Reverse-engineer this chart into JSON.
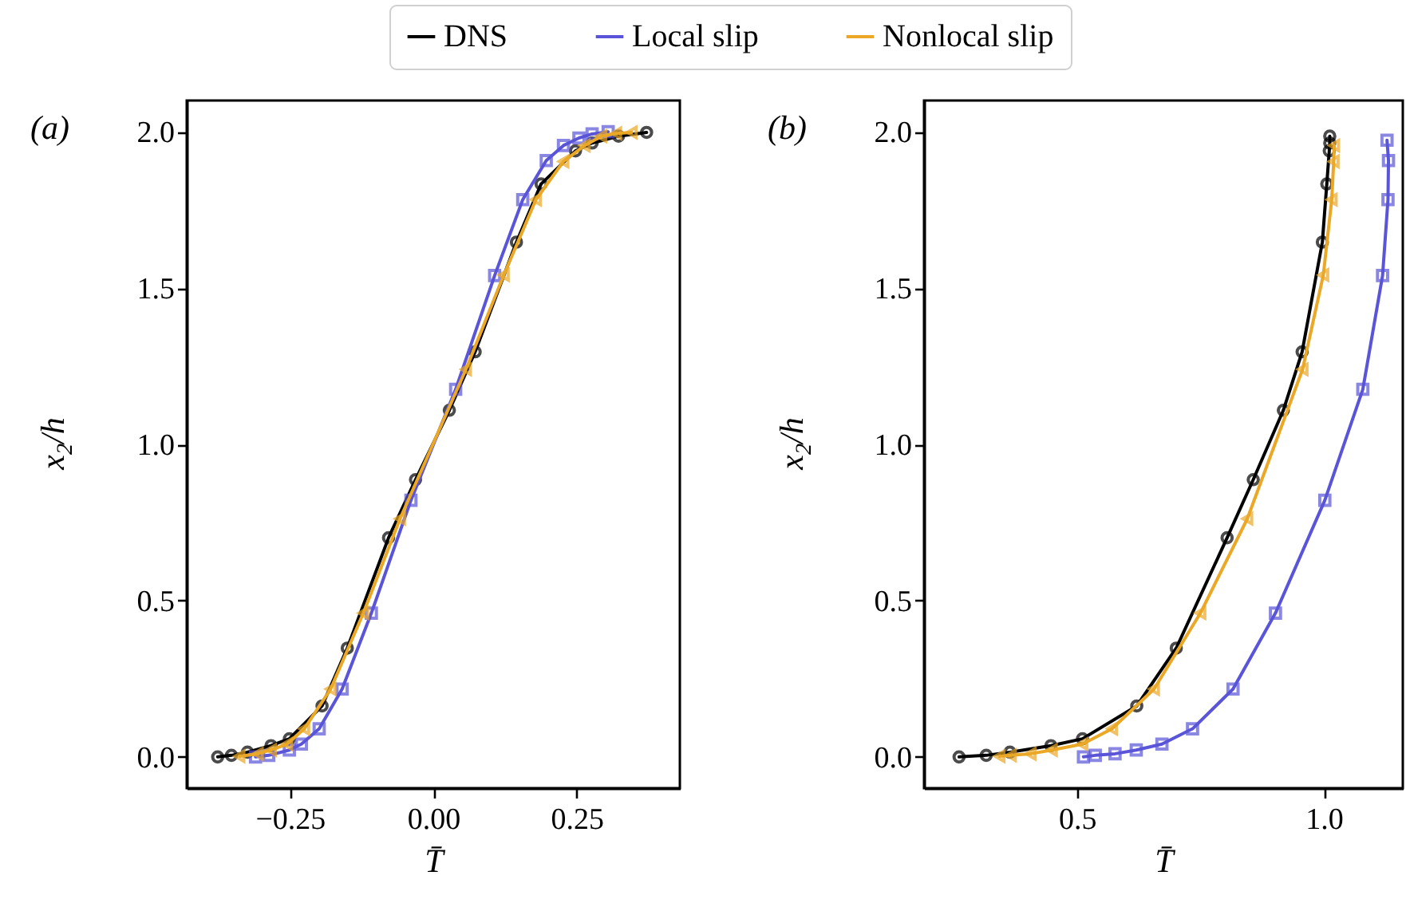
{
  "chart_data": [
    {
      "type": "line",
      "xlabel": "T̄",
      "ylabel": "x$_{2}$/h",
      "annotations": [
        "(a)"
      ],
      "legend": "top",
      "grid": false,
      "line_style": "solid",
      "xlim": [
        -0.43,
        0.43
      ],
      "ylim": [
        -0.1,
        2.1
      ],
      "xticks": [
        {
          "value": -0.25,
          "label": "−0.25"
        },
        {
          "value": 0,
          "label": "0.00"
        },
        {
          "value": 0.25,
          "label": "0.25"
        }
      ],
      "yticks": [
        {
          "value": 0,
          "label": "0.0"
        },
        {
          "value": 0.5,
          "label": "0.5"
        },
        {
          "value": 1,
          "label": "1.0"
        },
        {
          "value": 1.5,
          "label": "1.5"
        },
        {
          "value": 2,
          "label": "2.0"
        }
      ],
      "series": [
        {
          "name": "DNS",
          "color": "#000000",
          "marker": "circle",
          "x": [
            -0.376,
            -0.352,
            -0.324,
            -0.283,
            -0.251,
            -0.194,
            -0.15,
            -0.078,
            -0.031,
            0.028,
            0.073,
            0.145,
            0.188,
            0.248,
            0.277,
            0.323,
            0.372
          ],
          "values": [
            0,
            0.005,
            0.015,
            0.036,
            0.058,
            0.163,
            0.348,
            0.701,
            0.887,
            1.109,
            1.296,
            1.647,
            1.833,
            1.939,
            1.964,
            1.986,
            1.998
          ]
        },
        {
          "name": "Local slip",
          "color": "#5a55d8",
          "marker": "square",
          "x": [
            -0.31,
            -0.287,
            -0.251,
            -0.23,
            -0.199,
            -0.159,
            -0.108,
            -0.039,
            0.039,
            0.107,
            0.156,
            0.197,
            0.227,
            0.254,
            0.277,
            0.305
          ],
          "values": [
            0,
            0.005,
            0.022,
            0.041,
            0.09,
            0.217,
            0.46,
            0.821,
            1.176,
            1.54,
            1.783,
            1.908,
            1.956,
            1.98,
            1.993,
            2.0
          ]
        },
        {
          "name": "Nonlocal slip",
          "color": "#eaa826",
          "marker": "triangle",
          "x": [
            -0.338,
            -0.306,
            -0.283,
            -0.255,
            -0.225,
            -0.179,
            -0.122,
            -0.058,
            0.057,
            0.123,
            0.179,
            0.227,
            0.264,
            0.293,
            0.319,
            0.346
          ],
          "values": [
            0.002,
            0.01,
            0.022,
            0.041,
            0.09,
            0.217,
            0.46,
            0.762,
            1.24,
            1.542,
            1.783,
            1.905,
            1.956,
            1.986,
            1.995,
            1.998
          ]
        }
      ]
    },
    {
      "type": "line",
      "xlabel": "T̄",
      "ylabel": "x$_{2}$/h",
      "annotations": [
        "(b)"
      ],
      "grid": false,
      "line_style": "solid",
      "xlim": [
        0.19,
        1.16
      ],
      "ylim": [
        -0.1,
        2.1
      ],
      "xticks": [
        {
          "value": 0.5,
          "label": "0.5"
        },
        {
          "value": 1,
          "label": "1.0"
        }
      ],
      "yticks": [
        {
          "value": 0,
          "label": "0.0"
        },
        {
          "value": 0.5,
          "label": "0.5"
        },
        {
          "value": 1,
          "label": "1.0"
        },
        {
          "value": 1.5,
          "label": "1.5"
        },
        {
          "value": 2,
          "label": "2.0"
        }
      ],
      "series": [
        {
          "color": "#000000",
          "marker": "circle",
          "x": [
            0.261,
            0.316,
            0.364,
            0.447,
            0.511,
            0.621,
            0.701,
            0.804,
            0.857,
            0.918,
            0.956,
            0.997,
            1.006,
            1.011,
            1.012,
            1.012
          ],
          "values": [
            0,
            0.005,
            0.015,
            0.036,
            0.058,
            0.163,
            0.348,
            0.701,
            0.887,
            1.109,
            1.296,
            1.647,
            1.833,
            1.939,
            1.964,
            1.986
          ]
        },
        {
          "color": "#5a55d8",
          "marker": "square",
          "x": [
            0.513,
            0.537,
            0.577,
            0.62,
            0.672,
            0.734,
            0.816,
            0.902,
            1.002,
            1.079,
            1.119,
            1.13,
            1.131,
            1.128
          ],
          "values": [
            0,
            0.005,
            0.01,
            0.022,
            0.041,
            0.09,
            0.217,
            0.46,
            0.821,
            1.176,
            1.54,
            1.783,
            1.908,
            1.973
          ]
        },
        {
          "color": "#eaa826",
          "marker": "triangle",
          "x": [
            0.343,
            0.366,
            0.406,
            0.449,
            0.511,
            0.571,
            0.656,
            0.75,
            0.845,
            0.957,
            0.999,
            1.016,
            1.02,
            1.021
          ],
          "values": [
            0.002,
            0.005,
            0.01,
            0.022,
            0.041,
            0.09,
            0.217,
            0.46,
            0.762,
            1.24,
            1.542,
            1.783,
            1.905,
            1.956
          ]
        }
      ]
    }
  ]
}
